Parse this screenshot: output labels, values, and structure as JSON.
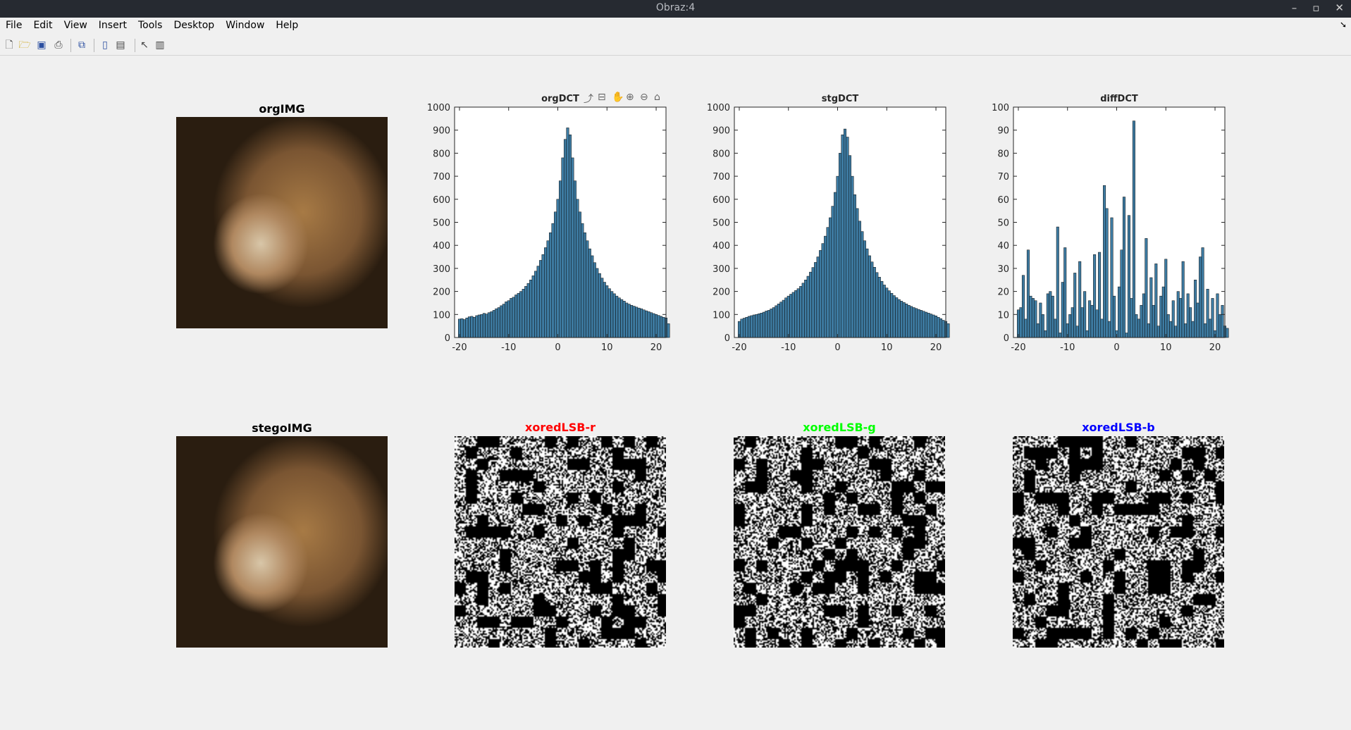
{
  "window": {
    "title": "Obraz:4"
  },
  "menu": [
    "File",
    "Edit",
    "View",
    "Insert",
    "Tools",
    "Desktop",
    "Window",
    "Help"
  ],
  "icons": [
    "new-figure-icon",
    "open-file-icon",
    "save-icon",
    "print-icon",
    "link-icon",
    "colorbar-icon",
    "legend-icon",
    "pointer-icon",
    "property-inspector-icon"
  ],
  "panels": {
    "org_img": {
      "title": "orgIMG"
    },
    "stego_img": {
      "title": "stegoIMG"
    },
    "xor_r": {
      "title": "xoredLSB-r",
      "color": "#ff0000"
    },
    "xor_g": {
      "title": "xoredLSB-g",
      "color": "#00ff00"
    },
    "xor_b": {
      "title": "xoredLSB-b",
      "color": "#0000ff"
    }
  },
  "chart_data": [
    {
      "type": "bar",
      "title": "orgDCT",
      "xlabel": "",
      "ylabel": "",
      "xlim": [
        -21,
        22
      ],
      "ylim": [
        0,
        1000
      ],
      "xticks": [
        -20,
        -10,
        0,
        10,
        20
      ],
      "yticks": [
        0,
        100,
        200,
        300,
        400,
        500,
        600,
        700,
        800,
        900,
        1000
      ],
      "x_start": -20,
      "x_step": 0.5,
      "values": [
        80,
        82,
        78,
        85,
        90,
        92,
        88,
        95,
        98,
        100,
        105,
        102,
        108,
        112,
        118,
        125,
        130,
        138,
        145,
        155,
        160,
        170,
        175,
        185,
        192,
        200,
        210,
        222,
        235,
        250,
        268,
        288,
        310,
        335,
        360,
        390,
        420,
        455,
        495,
        545,
        600,
        680,
        780,
        860,
        910,
        880,
        780,
        680,
        600,
        545,
        495,
        455,
        420,
        385,
        355,
        325,
        300,
        278,
        258,
        240,
        225,
        212,
        200,
        190,
        180,
        172,
        165,
        158,
        150,
        145,
        140,
        136,
        132,
        128,
        125,
        120,
        116,
        112,
        108,
        104,
        100,
        96,
        92,
        88,
        85,
        60
      ]
    },
    {
      "type": "bar",
      "title": "stgDCT",
      "xlabel": "",
      "ylabel": "",
      "xlim": [
        -21,
        22
      ],
      "ylim": [
        0,
        1000
      ],
      "xticks": [
        -20,
        -10,
        0,
        10,
        20
      ],
      "yticks": [
        0,
        100,
        200,
        300,
        400,
        500,
        600,
        700,
        800,
        900,
        1000
      ],
      "x_start": -20,
      "x_step": 0.5,
      "values": [
        70,
        80,
        84,
        88,
        92,
        95,
        98,
        100,
        103,
        106,
        110,
        115,
        118,
        124,
        130,
        138,
        146,
        154,
        162,
        172,
        180,
        188,
        196,
        204,
        212,
        222,
        236,
        250,
        266,
        284,
        304,
        326,
        350,
        378,
        408,
        440,
        478,
        520,
        570,
        630,
        700,
        800,
        880,
        905,
        870,
        790,
        700,
        620,
        560,
        505,
        460,
        420,
        385,
        355,
        328,
        305,
        282,
        262,
        244,
        228,
        215,
        203,
        192,
        182,
        173,
        165,
        158,
        152,
        146,
        140,
        135,
        130,
        126,
        122,
        118,
        114,
        110,
        106,
        102,
        98,
        94,
        88,
        82,
        75,
        70,
        60
      ]
    },
    {
      "type": "bar",
      "title": "diffDCT",
      "xlabel": "",
      "ylabel": "",
      "xlim": [
        -21,
        22
      ],
      "ylim": [
        0,
        100
      ],
      "xticks": [
        -20,
        -10,
        0,
        10,
        20
      ],
      "yticks": [
        0,
        10,
        20,
        30,
        40,
        50,
        60,
        70,
        80,
        90,
        100
      ],
      "x_start": -20,
      "x_step": 0.5,
      "values": [
        12,
        13,
        27,
        8,
        38,
        18,
        17,
        16,
        6,
        15,
        10,
        3,
        19,
        20,
        18,
        8,
        48,
        2,
        24,
        39,
        6,
        10,
        13,
        28,
        5,
        33,
        13,
        20,
        3,
        16,
        14,
        36,
        12,
        37,
        8,
        66,
        56,
        7,
        52,
        18,
        3,
        22,
        38,
        61,
        2,
        53,
        17,
        94,
        10,
        8,
        14,
        19,
        43,
        6,
        26,
        14,
        32,
        5,
        18,
        22,
        34,
        10,
        7,
        16,
        5,
        20,
        17,
        33,
        6,
        19,
        13,
        7,
        25,
        15,
        35,
        39,
        6,
        21,
        8,
        17,
        3,
        19,
        10,
        14,
        5,
        4
      ]
    }
  ]
}
